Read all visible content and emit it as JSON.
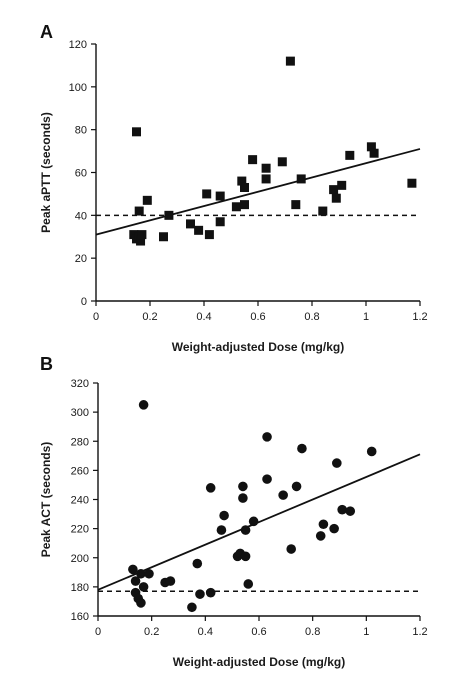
{
  "chart_data": [
    {
      "type": "scatter",
      "panel": "A",
      "title": "",
      "xlabel": "Weight-adjusted Dose (mg/kg)",
      "ylabel": "Peak aPTT (seconds)",
      "xlim": [
        0,
        1.2
      ],
      "ylim": [
        0,
        120
      ],
      "xticks": [
        "0",
        "0.2",
        "0.4",
        "0.6",
        "0.8",
        "1",
        "1.2"
      ],
      "yticks": [
        "0",
        "20",
        "40",
        "60",
        "80",
        "100",
        "120"
      ],
      "marker": "square",
      "points": [
        {
          "x": 0.14,
          "y": 31
        },
        {
          "x": 0.15,
          "y": 79
        },
        {
          "x": 0.15,
          "y": 29
        },
        {
          "x": 0.16,
          "y": 30
        },
        {
          "x": 0.16,
          "y": 42
        },
        {
          "x": 0.165,
          "y": 28
        },
        {
          "x": 0.17,
          "y": 31
        },
        {
          "x": 0.19,
          "y": 47
        },
        {
          "x": 0.25,
          "y": 30
        },
        {
          "x": 0.27,
          "y": 40
        },
        {
          "x": 0.35,
          "y": 36
        },
        {
          "x": 0.38,
          "y": 33
        },
        {
          "x": 0.41,
          "y": 50
        },
        {
          "x": 0.42,
          "y": 31
        },
        {
          "x": 0.46,
          "y": 37
        },
        {
          "x": 0.46,
          "y": 49
        },
        {
          "x": 0.52,
          "y": 44
        },
        {
          "x": 0.54,
          "y": 56
        },
        {
          "x": 0.55,
          "y": 53
        },
        {
          "x": 0.55,
          "y": 45
        },
        {
          "x": 0.58,
          "y": 66
        },
        {
          "x": 0.63,
          "y": 57
        },
        {
          "x": 0.63,
          "y": 62
        },
        {
          "x": 0.69,
          "y": 65
        },
        {
          "x": 0.72,
          "y": 112
        },
        {
          "x": 0.74,
          "y": 45
        },
        {
          "x": 0.76,
          "y": 57
        },
        {
          "x": 0.84,
          "y": 42
        },
        {
          "x": 0.88,
          "y": 52
        },
        {
          "x": 0.89,
          "y": 48
        },
        {
          "x": 0.91,
          "y": 54
        },
        {
          "x": 0.94,
          "y": 68
        },
        {
          "x": 1.02,
          "y": 72
        },
        {
          "x": 1.03,
          "y": 69
        },
        {
          "x": 1.17,
          "y": 55
        }
      ],
      "regression_line": {
        "x": [
          0,
          1.2
        ],
        "y": [
          31,
          71
        ]
      },
      "reference_line": {
        "y": 40,
        "style": "dashed"
      },
      "grid": false
    },
    {
      "type": "scatter",
      "panel": "B",
      "title": "",
      "xlabel": "Weight-adjusted Dose (mg/kg)",
      "ylabel": "Peak ACT (seconds)",
      "xlim": [
        0,
        1.2
      ],
      "ylim": [
        160,
        320
      ],
      "xticks": [
        "0",
        "0.2",
        "0.4",
        "0.6",
        "0.8",
        "1",
        "1.2"
      ],
      "yticks": [
        "160",
        "180",
        "200",
        "220",
        "240",
        "260",
        "280",
        "300",
        "320"
      ],
      "marker": "circle",
      "points": [
        {
          "x": 0.13,
          "y": 192
        },
        {
          "x": 0.14,
          "y": 184
        },
        {
          "x": 0.14,
          "y": 176
        },
        {
          "x": 0.15,
          "y": 172
        },
        {
          "x": 0.16,
          "y": 169
        },
        {
          "x": 0.16,
          "y": 189
        },
        {
          "x": 0.17,
          "y": 305
        },
        {
          "x": 0.17,
          "y": 180
        },
        {
          "x": 0.19,
          "y": 189
        },
        {
          "x": 0.25,
          "y": 183
        },
        {
          "x": 0.27,
          "y": 184
        },
        {
          "x": 0.35,
          "y": 166
        },
        {
          "x": 0.37,
          "y": 196
        },
        {
          "x": 0.38,
          "y": 175
        },
        {
          "x": 0.42,
          "y": 176
        },
        {
          "x": 0.42,
          "y": 248
        },
        {
          "x": 0.46,
          "y": 219
        },
        {
          "x": 0.47,
          "y": 229
        },
        {
          "x": 0.52,
          "y": 201
        },
        {
          "x": 0.53,
          "y": 203
        },
        {
          "x": 0.54,
          "y": 241
        },
        {
          "x": 0.54,
          "y": 249
        },
        {
          "x": 0.55,
          "y": 219
        },
        {
          "x": 0.55,
          "y": 201
        },
        {
          "x": 0.56,
          "y": 182
        },
        {
          "x": 0.58,
          "y": 225
        },
        {
          "x": 0.63,
          "y": 283
        },
        {
          "x": 0.63,
          "y": 254
        },
        {
          "x": 0.69,
          "y": 243
        },
        {
          "x": 0.72,
          "y": 206
        },
        {
          "x": 0.74,
          "y": 249
        },
        {
          "x": 0.76,
          "y": 275
        },
        {
          "x": 0.83,
          "y": 215
        },
        {
          "x": 0.84,
          "y": 223
        },
        {
          "x": 0.88,
          "y": 220
        },
        {
          "x": 0.89,
          "y": 265
        },
        {
          "x": 0.91,
          "y": 233
        },
        {
          "x": 0.94,
          "y": 232
        },
        {
          "x": 1.02,
          "y": 273
        }
      ],
      "regression_line": {
        "x": [
          0,
          1.2
        ],
        "y": [
          178,
          271
        ]
      },
      "reference_line": {
        "y": 177,
        "style": "dashed"
      },
      "grid": false
    }
  ],
  "colors": {
    "ink": "#111111",
    "background": "#ffffff"
  }
}
